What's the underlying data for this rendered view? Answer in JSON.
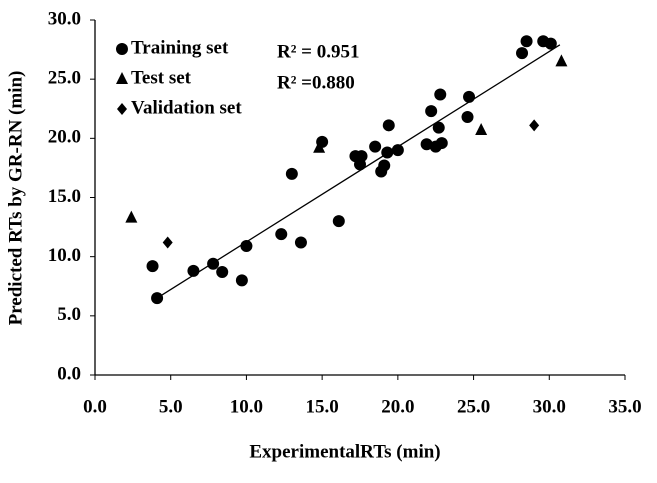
{
  "chart_data": {
    "type": "scatter",
    "xlabel": "ExperimentalRTs (min)",
    "ylabel": "Predicted RTs by GR-RN (min)",
    "xlim": [
      0,
      35
    ],
    "ylim": [
      0,
      30
    ],
    "xticks": [
      {
        "value": 0,
        "label": "0.0"
      },
      {
        "value": 5,
        "label": "5.0"
      },
      {
        "value": 10,
        "label": "10.0"
      },
      {
        "value": 15,
        "label": "15.0"
      },
      {
        "value": 20,
        "label": "20.0"
      },
      {
        "value": 25,
        "label": "25.0"
      },
      {
        "value": 30,
        "label": "30.0"
      },
      {
        "value": 35,
        "label": "35.0"
      }
    ],
    "yticks": [
      {
        "value": 0,
        "label": "0.0"
      },
      {
        "value": 5,
        "label": "5.0"
      },
      {
        "value": 10,
        "label": "10.0"
      },
      {
        "value": 15,
        "label": "15.0"
      },
      {
        "value": 20,
        "label": "20.0"
      },
      {
        "value": 25,
        "label": "25.0"
      },
      {
        "value": 30,
        "label": "30.0"
      }
    ],
    "legend": "upper left",
    "annotations": [
      "R² = 0.951",
      "R² =0.880"
    ],
    "series": [
      {
        "name": "Training set",
        "color": "#000000",
        "marker": "circle",
        "x": [
          4.1,
          3.8,
          6.5,
          7.8,
          8.4,
          9.7,
          10.0,
          12.3,
          13.0,
          13.6,
          15.0,
          16.1,
          17.2,
          17.5,
          17.6,
          18.5,
          18.9,
          19.1,
          19.3,
          19.4,
          20.0,
          21.9,
          22.2,
          22.5,
          22.7,
          22.8,
          22.9,
          24.6,
          24.7,
          28.2,
          28.5,
          29.6,
          30.1
        ],
        "values": [
          6.5,
          9.2,
          8.8,
          9.4,
          8.7,
          8.0,
          10.9,
          11.9,
          17.0,
          11.2,
          19.7,
          13.0,
          18.5,
          17.8,
          18.5,
          19.3,
          17.2,
          17.7,
          18.8,
          21.1,
          19.0,
          19.5,
          22.3,
          19.3,
          20.9,
          23.7,
          19.6,
          21.8,
          23.5,
          27.2,
          28.2,
          28.2,
          28.0
        ]
      },
      {
        "name": "Test set",
        "color": "#000000",
        "marker": "triangle",
        "x": [
          2.4,
          14.8,
          25.5,
          30.8
        ],
        "values": [
          13.3,
          19.2,
          20.7,
          26.5
        ]
      },
      {
        "name": "Validation set",
        "color": "#000000",
        "marker": "diamond",
        "x": [
          4.8,
          29.0
        ],
        "values": [
          11.2,
          21.1
        ]
      }
    ],
    "fit_line": {
      "x": [
        4.1,
        30.7
      ],
      "y": [
        6.5,
        27.9
      ],
      "color": "#000000"
    }
  }
}
